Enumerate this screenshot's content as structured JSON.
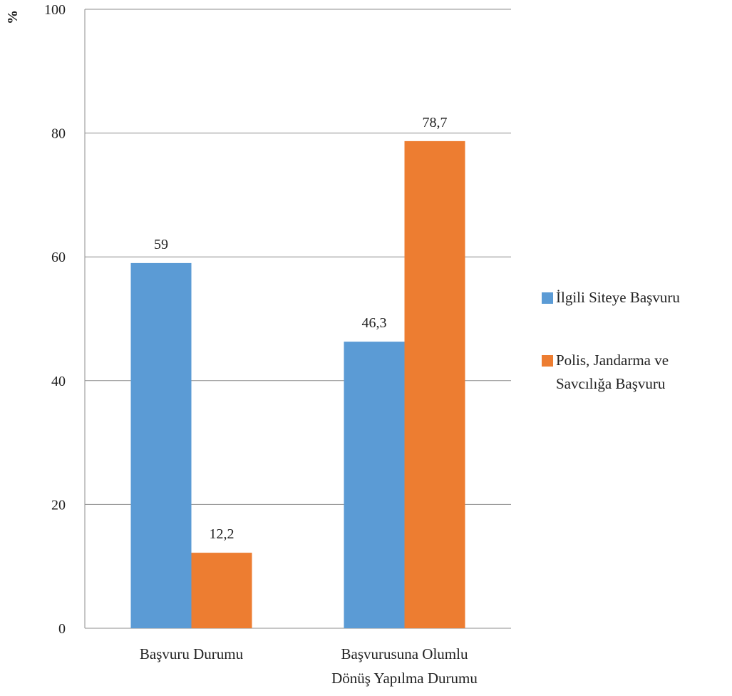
{
  "chart_data": {
    "type": "bar",
    "title": "",
    "xlabel": "",
    "ylabel": "%",
    "ylim": [
      0,
      100
    ],
    "yticks": [
      0,
      20,
      40,
      60,
      80,
      100
    ],
    "grid": true,
    "legend_position": "right",
    "categories": [
      [
        "Başvuru Durumu"
      ],
      [
        "Başvurusuna Olumlu",
        "Dönüş Yapılma Durumu"
      ]
    ],
    "series": [
      {
        "name": "İlgili Siteye Başvuru",
        "color": "#5B9BD5",
        "values": [
          59,
          46.3
        ],
        "labels": [
          "59",
          "46,3"
        ]
      },
      {
        "name_lines": [
          "Polis, Jandarma ve",
          "Savcılığa Başvuru"
        ],
        "color": "#ED7D31",
        "values": [
          12.2,
          78.7
        ],
        "labels": [
          "12,2",
          "78,7"
        ]
      }
    ]
  }
}
